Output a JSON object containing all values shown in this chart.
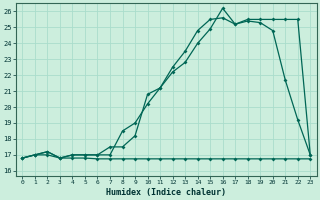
{
  "title": "",
  "xlabel": "Humidex (Indice chaleur)",
  "bg_color": "#cceedd",
  "grid_color": "#aaddcc",
  "line_color": "#006655",
  "xlim": [
    -0.5,
    23.5
  ],
  "ylim": [
    15.7,
    26.5
  ],
  "xticks": [
    0,
    1,
    2,
    3,
    4,
    5,
    6,
    7,
    8,
    9,
    10,
    11,
    12,
    13,
    14,
    15,
    16,
    17,
    18,
    19,
    20,
    21,
    22,
    23
  ],
  "yticks": [
    16,
    17,
    18,
    19,
    20,
    21,
    22,
    23,
    24,
    25,
    26
  ],
  "line1_x": [
    0,
    1,
    2,
    3,
    4,
    5,
    6,
    7,
    8,
    9,
    10,
    11,
    12,
    13,
    14,
    15,
    16,
    17,
    18,
    19,
    20,
    21,
    22,
    23
  ],
  "line1_y": [
    16.8,
    17.0,
    17.0,
    16.8,
    16.8,
    16.8,
    16.75,
    16.75,
    16.75,
    16.75,
    16.75,
    16.75,
    16.75,
    16.75,
    16.75,
    16.75,
    16.75,
    16.75,
    16.75,
    16.75,
    16.75,
    16.75,
    16.75,
    16.75
  ],
  "line2_x": [
    0,
    1,
    2,
    3,
    4,
    5,
    6,
    7,
    8,
    9,
    10,
    11,
    12,
    13,
    14,
    15,
    16,
    17,
    18,
    19,
    20,
    21,
    22,
    23
  ],
  "line2_y": [
    16.8,
    17.0,
    17.2,
    16.8,
    17.0,
    17.0,
    17.0,
    17.0,
    18.5,
    19.0,
    20.2,
    21.2,
    22.2,
    22.8,
    24.0,
    24.9,
    26.2,
    25.2,
    25.4,
    25.3,
    24.8,
    21.7,
    19.2,
    17.0
  ],
  "line3_x": [
    0,
    1,
    2,
    3,
    4,
    5,
    6,
    7,
    8,
    9,
    10,
    11,
    12,
    13,
    14,
    15,
    16,
    17,
    18,
    19,
    20,
    21,
    22,
    23
  ],
  "line3_y": [
    16.8,
    17.0,
    17.2,
    16.8,
    17.0,
    17.0,
    17.0,
    17.5,
    17.5,
    18.2,
    20.8,
    21.2,
    22.5,
    23.5,
    24.8,
    25.5,
    25.6,
    25.2,
    25.5,
    25.5,
    25.5,
    25.5,
    25.5,
    17.0
  ]
}
